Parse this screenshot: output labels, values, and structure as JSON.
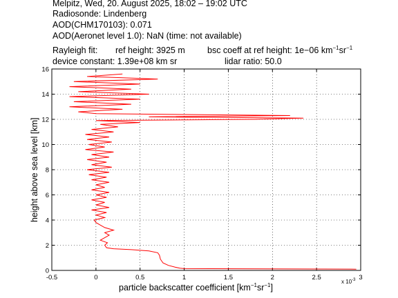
{
  "header": {
    "line1": "Melpitz, Wed, 20. August 2025, 18:02 – 19:02 UTC",
    "line2": "Radiosonde: Lindenberg",
    "line3": "AOD(CHM170103): 0.071",
    "line4": "AOD(Aeronet level 1.0): NaN   (time: not available)",
    "rayleigh_label": "Rayleigh fit:",
    "ref_height": "ref height: 3925 m",
    "bsc_coeff": "bsc coeff at ref height: 1e−06 km",
    "device_constant": "device constant: 1.39e+08 km sr",
    "lidar_ratio": "lidar ratio: 50.0"
  },
  "chart_data": {
    "type": "line",
    "xlabel": "particle backscatter coefficient [km⁻¹sr⁻¹]",
    "xlabel_main": "particle backscatter coefficient [km",
    "ylabel": "height above sea level [km]",
    "x_exponent": "x 10",
    "x_exponent_power": "-3",
    "xlim": [
      -0.5,
      3.0
    ],
    "ylim": [
      0,
      16
    ],
    "xticks": [
      "-0.5",
      "0",
      "0.5",
      "1",
      "1.5",
      "2",
      "2.5",
      "3"
    ],
    "yticks": [
      "0",
      "2",
      "4",
      "6",
      "8",
      "10",
      "12",
      "14",
      "16"
    ],
    "grid": true,
    "series": [
      {
        "color": "#ff0000",
        "points": [
          [
            2.95,
            0.1
          ],
          [
            1.0,
            0.14
          ],
          [
            0.95,
            0.18
          ],
          [
            0.9,
            0.25
          ],
          [
            0.82,
            0.4
          ],
          [
            0.76,
            0.6
          ],
          [
            0.73,
            0.9
          ],
          [
            0.72,
            1.2
          ],
          [
            0.7,
            1.4
          ],
          [
            0.6,
            1.55
          ],
          [
            0.4,
            1.65
          ],
          [
            0.2,
            1.72
          ],
          [
            0.12,
            1.8
          ],
          [
            0.1,
            2.0
          ],
          [
            0.13,
            2.2
          ],
          [
            0.05,
            2.4
          ],
          [
            0.1,
            2.6
          ],
          [
            0.15,
            2.8
          ],
          [
            0.1,
            3.0
          ],
          [
            0.2,
            3.2
          ],
          [
            0.1,
            3.4
          ],
          [
            0.05,
            3.6
          ],
          [
            0.0,
            3.8
          ],
          [
            -0.02,
            4.0
          ],
          [
            0.1,
            4.2
          ],
          [
            0.0,
            4.4
          ],
          [
            0.12,
            4.6
          ],
          [
            -0.05,
            4.8
          ],
          [
            0.15,
            5.0
          ],
          [
            0.0,
            5.2
          ],
          [
            0.1,
            5.4
          ],
          [
            -0.05,
            5.6
          ],
          [
            0.12,
            5.8
          ],
          [
            0.0,
            6.0
          ],
          [
            0.15,
            6.2
          ],
          [
            -0.05,
            6.4
          ],
          [
            0.1,
            6.6
          ],
          [
            0.0,
            6.8
          ],
          [
            0.15,
            7.0
          ],
          [
            -0.05,
            7.2
          ],
          [
            0.12,
            7.4
          ],
          [
            -0.08,
            7.6
          ],
          [
            0.15,
            7.8
          ],
          [
            -0.1,
            8.0
          ],
          [
            0.18,
            8.2
          ],
          [
            -0.05,
            8.4
          ],
          [
            0.12,
            8.6
          ],
          [
            -0.1,
            8.8
          ],
          [
            0.15,
            9.0
          ],
          [
            -0.05,
            9.2
          ],
          [
            0.2,
            9.4
          ],
          [
            -0.12,
            9.6
          ],
          [
            0.1,
            9.8
          ],
          [
            -0.08,
            10.0
          ],
          [
            0.18,
            10.2
          ],
          [
            -0.1,
            10.4
          ],
          [
            0.15,
            10.6
          ],
          [
            -0.12,
            10.8
          ],
          [
            0.2,
            11.0
          ],
          [
            -0.05,
            11.2
          ],
          [
            0.25,
            11.4
          ],
          [
            0.05,
            11.6
          ],
          [
            0.5,
            11.75
          ],
          [
            0.0,
            11.9
          ],
          [
            1.8,
            12.0
          ],
          [
            2.35,
            12.1
          ],
          [
            0.6,
            12.2
          ],
          [
            2.2,
            12.3
          ],
          [
            0.0,
            12.45
          ],
          [
            -0.2,
            12.6
          ],
          [
            0.3,
            12.8
          ],
          [
            -0.3,
            13.0
          ],
          [
            0.4,
            13.2
          ],
          [
            -0.25,
            13.4
          ],
          [
            0.5,
            13.6
          ],
          [
            -0.3,
            13.8
          ],
          [
            0.6,
            14.0
          ],
          [
            -0.2,
            14.2
          ],
          [
            0.4,
            14.4
          ],
          [
            -0.3,
            14.6
          ],
          [
            0.5,
            14.8
          ],
          [
            -0.25,
            15.0
          ],
          [
            0.7,
            15.2
          ],
          [
            -0.1,
            15.4
          ],
          [
            0.3,
            15.6
          ]
        ]
      }
    ]
  }
}
